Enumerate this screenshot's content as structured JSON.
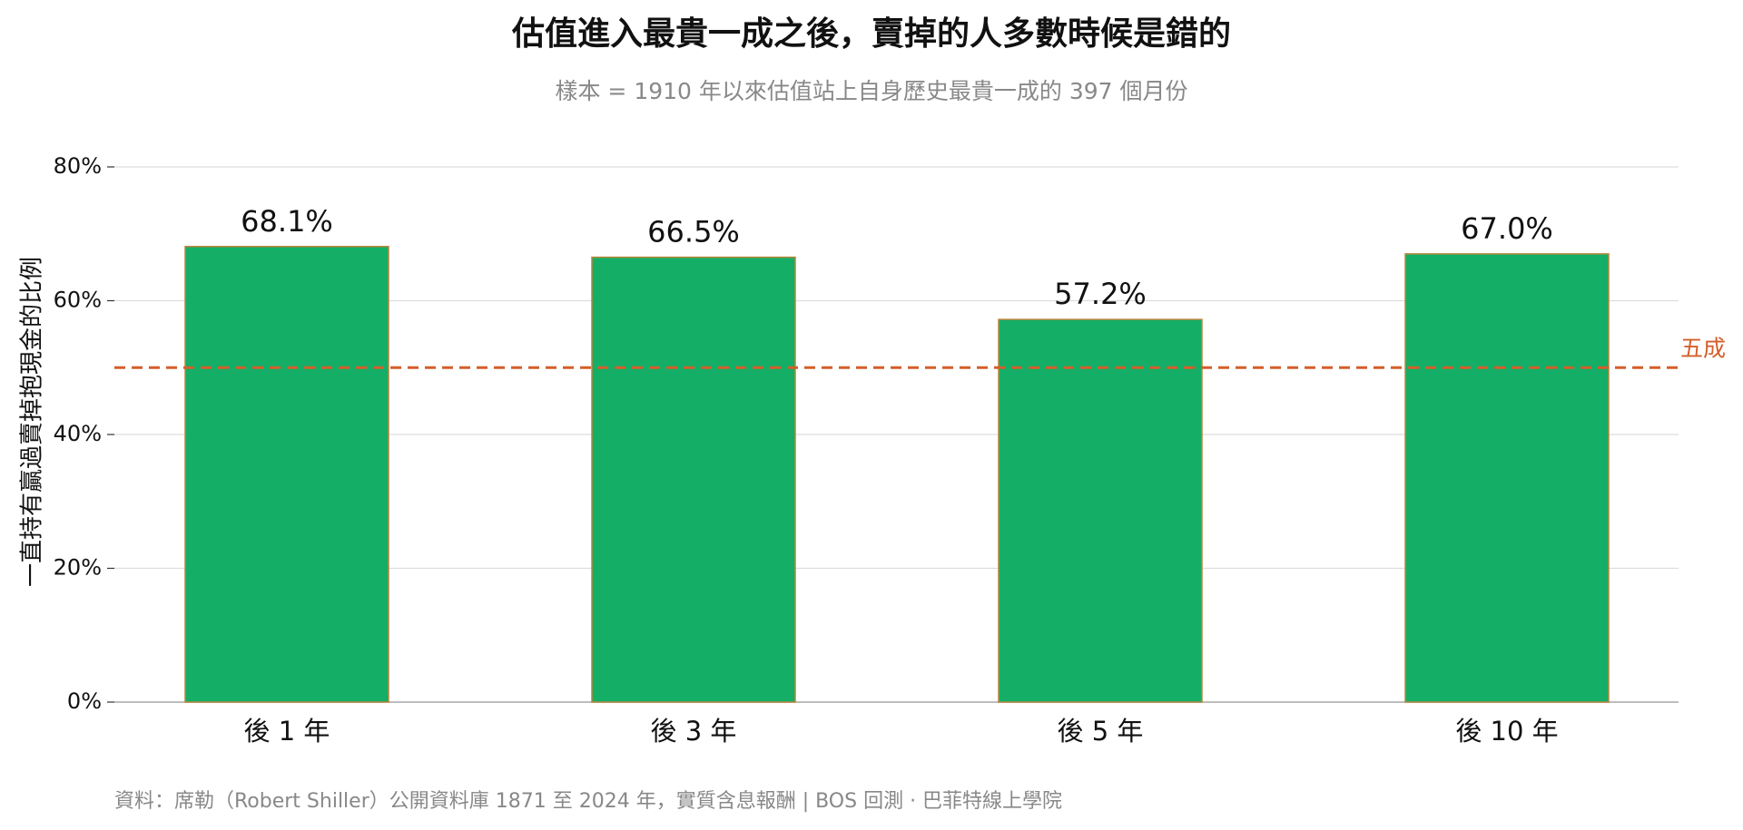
{
  "chart_data": {
    "type": "bar",
    "title": "估值進入最貴一成之後，賣掉的人多數時候是錯的",
    "subtitle": "樣本 = 1910 年以來估值站上自身歷史最貴一成的 397 個月份",
    "y_label": "一直持有贏過賣掉抱現金的比例",
    "source": "資料：席勒（Robert Shiller）公開資料庫 1871 至 2024 年，實質含息報酬 | BOS 回測 ·  巴菲特線上學院",
    "categories": [
      "後 1 年",
      "後 3 年",
      "後 5 年",
      "後 10 年"
    ],
    "values": [
      68.1,
      66.5,
      57.2,
      67.0
    ],
    "value_labels": [
      "68.1%",
      "66.5%",
      "57.2%",
      "67.0%"
    ],
    "color": "#14ae67",
    "edge_color": "#b8863b",
    "ylim": [
      0,
      80
    ],
    "yticks": [
      {
        "value": 0,
        "label": "0%"
      },
      {
        "value": 20,
        "label": "20%"
      },
      {
        "value": 40,
        "label": "40%"
      },
      {
        "value": 60,
        "label": "60%"
      },
      {
        "value": 80,
        "label": "80%"
      }
    ],
    "grid": true,
    "reference_line": {
      "value": 50,
      "label": "五成",
      "color": "#d35f2a"
    }
  }
}
